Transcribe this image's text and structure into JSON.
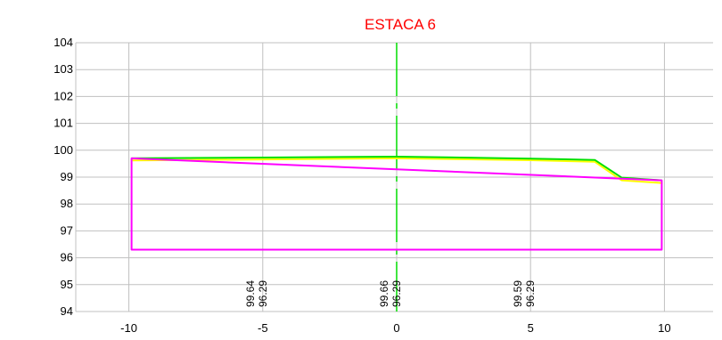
{
  "chart_data": {
    "type": "line",
    "title": "ESTACA 6",
    "title_color": "#ff0000",
    "xlabel": "",
    "ylabel": "",
    "xlim": [
      -10,
      10
    ],
    "ylim": [
      94,
      104
    ],
    "x_ticks": [
      -10,
      -5,
      0,
      5,
      10
    ],
    "x_tick_labels": [
      "-10",
      "-5",
      "0",
      "5",
      "10"
    ],
    "y_ticks": [
      94,
      95,
      96,
      97,
      98,
      99,
      100,
      101,
      102,
      103,
      104
    ],
    "y_tick_labels": [
      "94",
      "95",
      "96",
      "97",
      "98",
      "99",
      "100",
      "101",
      "102",
      "103",
      "104"
    ],
    "grid": true,
    "grid_color": "#c0c0c0",
    "centerline": {
      "x": 0,
      "color": "#00dd00",
      "style": "dash-dot"
    },
    "series": [
      {
        "color": "#ffff00",
        "points": [
          [
            -9.9,
            99.62
          ],
          [
            0,
            99.7
          ],
          [
            5,
            99.63
          ],
          [
            7.4,
            99.57
          ],
          [
            8.4,
            98.88
          ],
          [
            9.9,
            98.78
          ]
        ]
      },
      {
        "color": "#00e000",
        "points": [
          [
            -9.9,
            99.7
          ],
          [
            -5,
            99.73
          ],
          [
            0,
            99.76
          ],
          [
            5,
            99.69
          ],
          [
            7.4,
            99.64
          ],
          [
            8.4,
            98.98
          ],
          [
            9.9,
            98.88
          ]
        ]
      },
      {
        "color": "#ff00ff",
        "closed": true,
        "points": [
          [
            -9.9,
            99.7
          ],
          [
            -9.9,
            96.3
          ],
          [
            9.9,
            96.3
          ],
          [
            9.9,
            98.88
          ]
        ]
      }
    ],
    "annotations": [
      {
        "x": -5,
        "labels": [
          "99.64",
          "96.29"
        ]
      },
      {
        "x": 0,
        "labels": [
          "99.66",
          "96.29"
        ]
      },
      {
        "x": 5,
        "labels": [
          "99.59",
          "96.29"
        ]
      }
    ]
  }
}
